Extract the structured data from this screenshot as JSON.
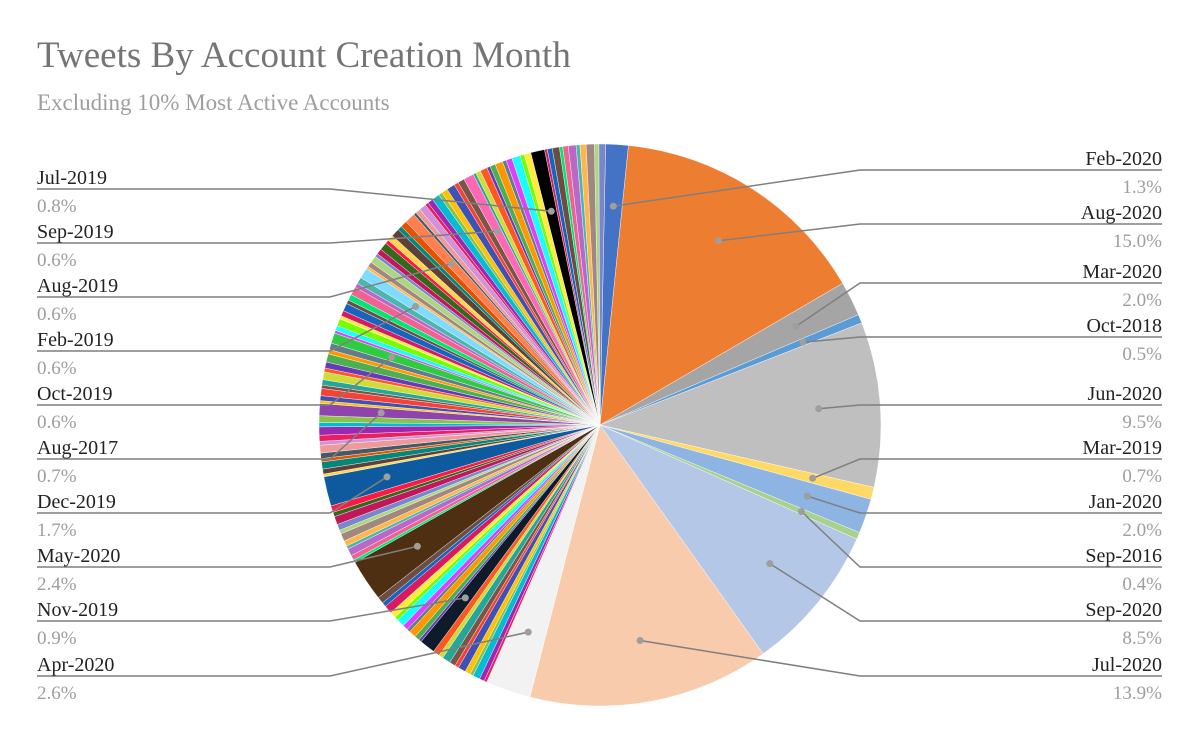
{
  "title": "Tweets By Account Creation Month",
  "subtitle": "Excluding 10% Most Active Accounts",
  "chart_data": {
    "type": "pie",
    "title": "Tweets By Account Creation Month",
    "subtitle": "Excluding 10% Most Active Accounts",
    "labeled_slices": [
      {
        "label": "Feb-2020",
        "pct": "1.3%",
        "value": 1.3,
        "color": "#4472c4"
      },
      {
        "label": "Aug-2020",
        "pct": "15.0%",
        "value": 15.0,
        "color": "#ed7d31"
      },
      {
        "label": "Mar-2020",
        "pct": "2.0%",
        "value": 2.0,
        "color": "#a5a5a5"
      },
      {
        "label": "Oct-2018",
        "pct": "0.5%",
        "value": 0.5,
        "color": "#5b9bd5"
      },
      {
        "label": "Jun-2020",
        "pct": "9.5%",
        "value": 9.5,
        "color": "#bfbfbf"
      },
      {
        "label": "Mar-2019",
        "pct": "0.7%",
        "value": 0.7,
        "color": "#ffd966"
      },
      {
        "label": "Jan-2020",
        "pct": "2.0%",
        "value": 2.0,
        "color": "#8db4e2"
      },
      {
        "label": "Sep-2016",
        "pct": "0.4%",
        "value": 0.4,
        "color": "#a9d18e"
      },
      {
        "label": "Sep-2020",
        "pct": "8.5%",
        "value": 8.5,
        "color": "#b4c7e7"
      },
      {
        "label": "Jul-2020",
        "pct": "13.9%",
        "value": 13.9,
        "color": "#f8cbad"
      },
      {
        "label": "Apr-2020",
        "pct": "2.6%",
        "value": 2.6,
        "color": "#f2f2f2"
      },
      {
        "label": "Nov-2019",
        "pct": "0.9%",
        "value": 0.9,
        "color": "#0d1b2a"
      },
      {
        "label": "May-2020",
        "pct": "2.4%",
        "value": 2.4,
        "color": "#4e2f12"
      },
      {
        "label": "Dec-2019",
        "pct": "1.7%",
        "value": 1.7,
        "color": "#0e5a9e"
      },
      {
        "label": "Aug-2017",
        "pct": "0.7%",
        "value": 0.7,
        "color": "#8e44ad"
      },
      {
        "label": "Oct-2019",
        "pct": "0.6%",
        "value": 0.6,
        "color": "#2ecc40"
      },
      {
        "label": "Feb-2019",
        "pct": "0.6%",
        "value": 0.6,
        "color": "#7fdbff"
      },
      {
        "label": "Aug-2019",
        "pct": "0.6%",
        "value": 0.6,
        "color": "#ff7f50"
      },
      {
        "label": "Sep-2019",
        "pct": "0.6%",
        "value": 0.6,
        "color": "#ff69b4"
      },
      {
        "label": "Jul-2019",
        "pct": "0.8%",
        "value": 0.8,
        "color": "#000000"
      }
    ],
    "other_slices_total": 34.9,
    "other_slices_count": 110,
    "other_palette": [
      "#e91e63",
      "#9c27b0",
      "#00bcd4",
      "#8bc34a",
      "#ffc107",
      "#3f51b5",
      "#f44336",
      "#795548",
      "#26a69a",
      "#cddc39",
      "#ff5722",
      "#673ab7",
      "#4caf50",
      "#ff9800",
      "#607d8b",
      "#e040fb",
      "#18ffff",
      "#76ff03",
      "#ffeb3b",
      "#d81b60",
      "#1565c0",
      "#6d4c41",
      "#00e676",
      "#f06292",
      "#ba68c8",
      "#4db6ac",
      "#ffb74d",
      "#a1887f",
      "#aed581",
      "#7986cb",
      "#c2185b",
      "#33691e",
      "#ff1744",
      "#ffd54f",
      "#5d4037",
      "#00897b",
      "#e65100",
      "#455a64",
      "#ef9a9a",
      "#ce93d8"
    ],
    "legend": "none"
  }
}
